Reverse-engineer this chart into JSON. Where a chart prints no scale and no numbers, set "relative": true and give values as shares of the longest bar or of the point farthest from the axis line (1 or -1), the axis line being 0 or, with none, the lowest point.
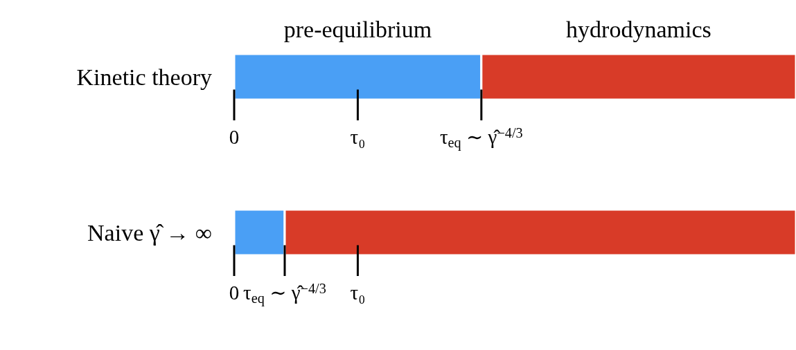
{
  "chart_data": [
    {
      "type": "bar",
      "orientation": "horizontal",
      "stacked": true,
      "relative": true,
      "categories": [
        "Kinetic theory"
      ],
      "series": [
        {
          "name": "pre-equilibrium",
          "color": "#4a9ff5",
          "values": [
            0.44
          ]
        },
        {
          "name": "hydrodynamics",
          "color": "#d83b28",
          "values": [
            0.56
          ]
        }
      ],
      "ref_lines": [
        {
          "axis": "x",
          "value": 0,
          "label": "0"
        },
        {
          "axis": "x",
          "value": 0.22,
          "label": "τ₀"
        },
        {
          "axis": "x",
          "value": 0.44,
          "label": "τ$_{eq}$ ∼ γ̂$^{−4/3}$"
        }
      ]
    },
    {
      "type": "bar",
      "orientation": "horizontal",
      "stacked": true,
      "relative": true,
      "categories": [
        "Naive γ̂ → ∞"
      ],
      "series": [
        {
          "color": "#4a9ff5",
          "values": [
            0.09
          ]
        },
        {
          "color": "#d83b28",
          "values": [
            0.91
          ]
        }
      ],
      "ref_lines": [
        {
          "axis": "x",
          "value": 0,
          "label": "0"
        },
        {
          "axis": "x",
          "value": 0.09,
          "label": "τ$_{eq}$ ∼ γ̂$^{−4/3}$"
        },
        {
          "axis": "x",
          "value": 0.22,
          "label": "τ₀"
        }
      ]
    }
  ]
}
